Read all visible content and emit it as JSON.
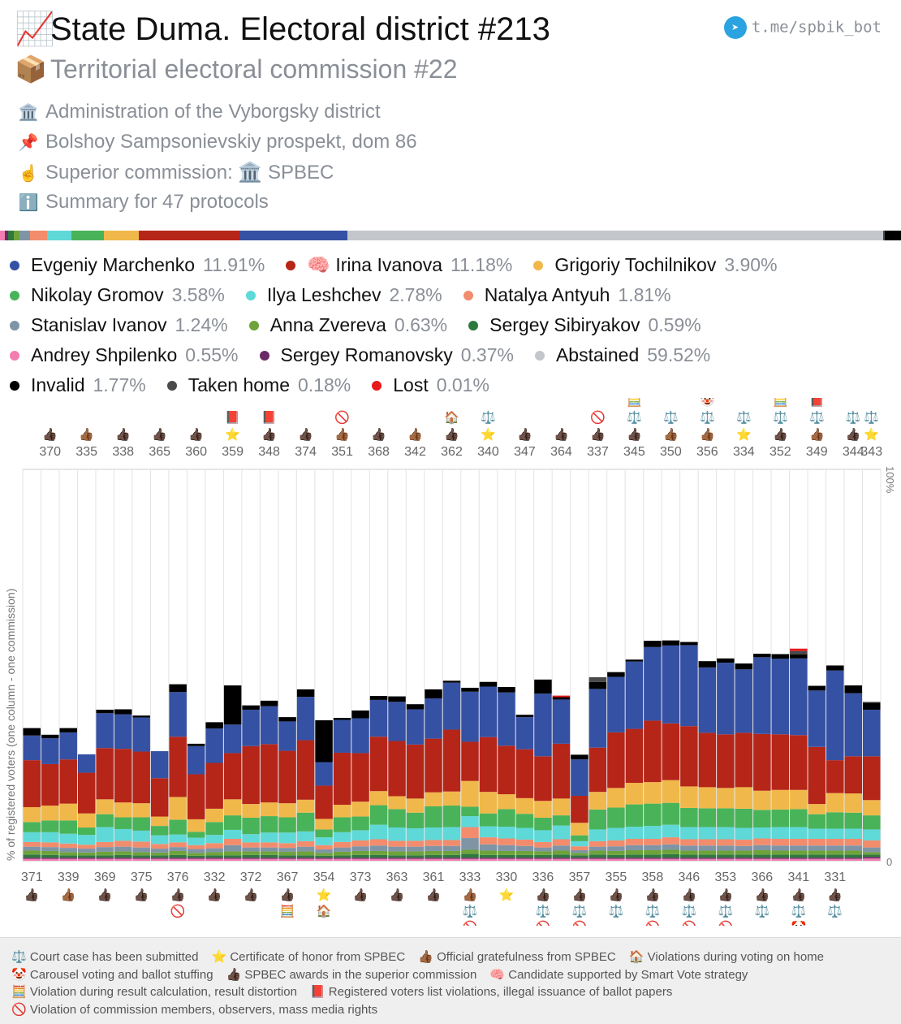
{
  "header": {
    "title_icon": "📈",
    "title": "State Duma. Electoral district #213",
    "subtitle_icon": "📦",
    "subtitle": "Territorial electoral commission #22",
    "telegram": "t.me/spbik_bot",
    "info": [
      {
        "icon": "🏛️",
        "text": "Administration of the Vyborgsky district"
      },
      {
        "icon": "📌",
        "text": "Bolshoy Sampsonievskiy prospekt, dom 86"
      },
      {
        "icon": "☝️",
        "text": "Superior commission: 🏛️ SPBEC"
      },
      {
        "icon": "ℹ️",
        "text": "Summary for 47 protocols"
      }
    ]
  },
  "legend": [
    {
      "name": "Evgeniy Marchenko",
      "pct": "11.91%",
      "color": "#3551a3"
    },
    {
      "name": "🧠 Irina Ivanova",
      "pct": "11.18%",
      "color": "#b52518"
    },
    {
      "name": "Grigoriy Tochilnikov",
      "pct": "3.90%",
      "color": "#f0b84a"
    },
    {
      "name": "Nikolay Gromov",
      "pct": "3.58%",
      "color": "#49b35a"
    },
    {
      "name": "Ilya Leshchev",
      "pct": "2.78%",
      "color": "#5fd8d8"
    },
    {
      "name": "Natalya Antyuh",
      "pct": "1.81%",
      "color": "#f28c6c"
    },
    {
      "name": "Stanislav Ivanov",
      "pct": "1.24%",
      "color": "#7f95a6"
    },
    {
      "name": "Anna Zvereva",
      "pct": "0.63%",
      "color": "#6ea33a"
    },
    {
      "name": "Sergey Sibiryakov",
      "pct": "0.59%",
      "color": "#2e7a3d"
    },
    {
      "name": "Andrey Shpilenko",
      "pct": "0.55%",
      "color": "#f27db0"
    },
    {
      "name": "Sergey Romanovsky",
      "pct": "0.37%",
      "color": "#6a2a66"
    },
    {
      "name": "Abstained",
      "pct": "59.52%",
      "color": "#c3c6ca"
    },
    {
      "name": "Invalid",
      "pct": "1.77%",
      "color": "#000000"
    },
    {
      "name": "Taken home",
      "pct": "0.18%",
      "color": "#4a4a4a"
    },
    {
      "name": "Lost",
      "pct": "0.01%",
      "color": "#e8191c"
    }
  ],
  "legend_rows": [
    [
      0,
      1,
      2
    ],
    [
      3,
      4,
      5
    ],
    [
      6,
      7,
      8
    ],
    [
      9,
      10,
      11
    ],
    [
      12,
      13,
      14
    ]
  ],
  "chart_data": {
    "type": "bar",
    "stacked": true,
    "ylabel": "% of registered voters (one column - one commission)",
    "ylim": [
      0,
      100
    ],
    "y_tick_labels": [
      "0",
      "100%"
    ],
    "series_names": [
      "Andrey Shpilenko",
      "Sergey Romanovsky",
      "Sergey Sibiryakov",
      "Anna Zvereva",
      "Stanislav Ivanov",
      "Natalya Antyuh",
      "Ilya Leshchev",
      "Nikolay Gromov",
      "Grigoriy Tochilnikov",
      "Irina Ivanova",
      "Evgeniy Marchenko",
      "Invalid",
      "Taken home",
      "Lost"
    ],
    "series_colors": [
      "#f27db0",
      "#6a2a66",
      "#2e7a3d",
      "#6ea33a",
      "#7f95a6",
      "#f28c6c",
      "#5fd8d8",
      "#49b35a",
      "#f0b84a",
      "#b52518",
      "#3551a3",
      "#000000",
      "#4a4a4a",
      "#e8191c"
    ],
    "categories": [
      "371",
      "370",
      "339",
      "335",
      "369",
      "338",
      "375",
      "365",
      "376",
      "360",
      "332",
      "359",
      "372",
      "348",
      "367",
      "374",
      "354",
      "351",
      "373",
      "368",
      "363",
      "342",
      "361",
      "362",
      "333",
      "340",
      "330",
      "347",
      "336",
      "364",
      "357",
      "337",
      "355",
      "345",
      "358",
      "350",
      "346",
      "356",
      "353",
      "334",
      "366",
      "352",
      "341",
      "349",
      "331",
      "344",
      "343"
    ],
    "columns": [
      [
        0.5,
        0.3,
        0.8,
        1.0,
        1.0,
        1.2,
        2.5,
        2.6,
        3.8,
        12.0,
        6.3,
        1.9,
        0,
        0
      ],
      [
        0.5,
        0.3,
        0.7,
        1.0,
        1.0,
        1.2,
        2.6,
        3.0,
        3.8,
        10.6,
        6.6,
        0.9,
        0,
        0
      ],
      [
        0.5,
        0.3,
        0.6,
        0.8,
        1.1,
        1.1,
        2.5,
        3.4,
        4.3,
        11.3,
        6.9,
        1.1,
        0,
        0
      ],
      [
        0.5,
        0.3,
        0.6,
        0.7,
        1.0,
        1.0,
        2.5,
        1.9,
        3.6,
        10.4,
        4.7,
        0,
        0,
        0
      ],
      [
        0.5,
        0.3,
        0.6,
        0.9,
        1.2,
        1.3,
        3.8,
        3.3,
        3.8,
        13.1,
        8.9,
        0.9,
        0,
        0
      ],
      [
        0.5,
        0.3,
        0.7,
        0.9,
        1.2,
        1.5,
        3.0,
        3.0,
        3.8,
        13.7,
        8.8,
        1.3,
        0,
        0
      ],
      [
        0.5,
        0.3,
        0.6,
        0.8,
        1.2,
        1.5,
        2.8,
        3.4,
        3.6,
        13.2,
        8.7,
        0.5,
        0,
        0
      ],
      [
        0.5,
        0.3,
        0.6,
        0.7,
        1.0,
        1.2,
        2.2,
        2.4,
        2.4,
        9.8,
        6.9,
        0,
        0,
        0
      ],
      [
        0.5,
        0.3,
        0.7,
        1.0,
        1.0,
        1.2,
        2.0,
        3.8,
        5.8,
        15.4,
        11.4,
        2.0,
        0,
        0
      ],
      [
        0.5,
        0.3,
        0.5,
        0.7,
        1.0,
        1.0,
        1.9,
        1.5,
        3.2,
        11.5,
        7.2,
        0.6,
        0,
        0
      ],
      [
        0.5,
        0.3,
        0.6,
        0.8,
        1.0,
        1.3,
        2.1,
        3.3,
        3.4,
        11.7,
        8.8,
        1.6,
        0,
        0
      ],
      [
        0.5,
        0.3,
        0.6,
        1.0,
        1.6,
        1.6,
        2.3,
        3.7,
        4.1,
        11.8,
        7.3,
        10.0,
        0,
        0
      ],
      [
        0.5,
        0.3,
        0.7,
        0.9,
        1.0,
        1.3,
        2.1,
        4.2,
        3.5,
        14.8,
        9.3,
        1.1,
        0,
        0
      ],
      [
        0.5,
        0.3,
        0.7,
        0.9,
        1.0,
        1.3,
        2.5,
        4.2,
        3.5,
        14.9,
        9.7,
        1.4,
        0,
        0
      ],
      [
        0.5,
        0.3,
        0.6,
        0.9,
        1.0,
        1.2,
        2.7,
        3.9,
        3.6,
        13.4,
        7.5,
        1.1,
        0,
        0
      ],
      [
        0.5,
        0.3,
        0.6,
        1.0,
        1.2,
        1.4,
        2.5,
        4.8,
        3.3,
        15.2,
        11.1,
        1.9,
        0,
        0
      ],
      [
        0.5,
        0.3,
        0.5,
        0.7,
        0.9,
        1.1,
        2.0,
        2.0,
        2.7,
        8.5,
        6.0,
        10.7,
        0,
        0
      ],
      [
        0.5,
        0.3,
        0.6,
        0.9,
        1.1,
        1.4,
        2.5,
        3.8,
        3.2,
        13.3,
        8.4,
        0.5,
        0,
        0
      ],
      [
        0.5,
        0.3,
        0.7,
        1.0,
        1.2,
        1.5,
        2.6,
        3.5,
        3.8,
        12.4,
        8.9,
        2.0,
        0,
        0
      ],
      [
        0.5,
        0.3,
        0.7,
        1.0,
        1.4,
        1.6,
        3.7,
        5.0,
        3.6,
        13.9,
        9.4,
        1.0,
        0,
        0
      ],
      [
        0.5,
        0.3,
        0.6,
        1.0,
        1.2,
        1.5,
        3.4,
        4.7,
        3.3,
        14.1,
        10.0,
        1.4,
        0,
        0
      ],
      [
        0.5,
        0.3,
        0.6,
        1.0,
        1.2,
        1.5,
        3.2,
        4.0,
        3.6,
        13.8,
        9.0,
        1.3,
        0,
        0
      ],
      [
        0.5,
        0.3,
        0.7,
        1.0,
        1.3,
        1.5,
        3.2,
        5.4,
        3.6,
        13.7,
        10.3,
        2.3,
        0,
        0
      ],
      [
        0.5,
        0.3,
        0.7,
        1.0,
        1.3,
        1.5,
        3.3,
        5.5,
        3.6,
        15.8,
        12.0,
        0.5,
        0,
        0
      ],
      [
        0.5,
        0.3,
        1.0,
        1.0,
        3.0,
        2.8,
        2.8,
        2.4,
        6.6,
        10.0,
        12.8,
        1.0,
        0,
        0
      ],
      [
        0.5,
        0.3,
        0.7,
        1.1,
        1.6,
        1.8,
        2.8,
        3.3,
        5.5,
        14.0,
        12.9,
        1.2,
        0,
        0
      ],
      [
        0.5,
        0.3,
        0.7,
        1.0,
        1.5,
        1.7,
        3.0,
        4.5,
        3.8,
        12.4,
        13.6,
        1.4,
        0,
        0
      ],
      [
        0.5,
        0.3,
        0.7,
        1.0,
        1.3,
        1.6,
        3.0,
        3.6,
        4.0,
        12.5,
        8.2,
        0.6,
        0,
        0
      ],
      [
        0.5,
        0.3,
        0.7,
        0.9,
        1.0,
        1.4,
        3.0,
        3.2,
        4.3,
        11.4,
        16.0,
        3.6,
        0,
        0
      ],
      [
        0.5,
        0.3,
        0.8,
        1.0,
        1.3,
        1.6,
        3.5,
        2.6,
        4.3,
        14.0,
        11.3,
        0.6,
        0,
        0.4
      ],
      [
        0.5,
        0.3,
        0.6,
        0.6,
        0.7,
        1.0,
        1.3,
        1.5,
        3.2,
        6.9,
        9.3,
        1.2,
        0,
        0
      ],
      [
        0.5,
        0.3,
        0.8,
        1.0,
        1.0,
        1.4,
        3.0,
        5.1,
        4.5,
        11.3,
        15.0,
        1.8,
        1.2,
        0
      ],
      [
        0.5,
        0.3,
        0.7,
        1.0,
        1.2,
        1.5,
        3.2,
        5.2,
        5.0,
        14.2,
        14.2,
        1.2,
        0,
        0
      ],
      [
        0.5,
        0.3,
        0.8,
        1.1,
        1.3,
        1.6,
        3.1,
        5.7,
        5.5,
        13.8,
        17.2,
        0.5,
        0,
        0
      ],
      [
        0.5,
        0.3,
        0.8,
        1.1,
        1.3,
        1.6,
        3.3,
        5.7,
        5.5,
        15.7,
        18.8,
        1.6,
        0,
        0
      ],
      [
        0.5,
        0.3,
        0.9,
        1.1,
        1.4,
        1.8,
        3.2,
        5.6,
        5.8,
        14.5,
        19.9,
        1.3,
        0,
        0
      ],
      [
        0.5,
        0.3,
        0.8,
        1.0,
        1.3,
        1.6,
        3.1,
        4.9,
        5.5,
        15.4,
        20.7,
        0.8,
        0,
        0
      ],
      [
        0.5,
        0.3,
        0.8,
        1.0,
        1.3,
        1.6,
        3.1,
        4.8,
        5.4,
        13.9,
        16.7,
        1.6,
        0,
        0
      ],
      [
        0.5,
        0.3,
        0.8,
        1.0,
        1.3,
        1.6,
        3.1,
        4.8,
        5.2,
        13.7,
        18.3,
        1.1,
        0,
        0
      ],
      [
        0.5,
        0.3,
        0.8,
        1.0,
        1.2,
        1.6,
        3.0,
        4.9,
        5.5,
        13.9,
        16.2,
        1.5,
        0,
        0
      ],
      [
        0.5,
        0.3,
        0.8,
        1.1,
        1.3,
        1.7,
        2.8,
        4.5,
        4.9,
        14.5,
        19.6,
        0.9,
        0,
        0
      ],
      [
        0.5,
        0.3,
        0.8,
        1.0,
        1.3,
        1.7,
        3.0,
        4.5,
        5.0,
        14.2,
        19.3,
        1.2,
        0,
        0
      ],
      [
        0.5,
        0.3,
        0.8,
        1.0,
        1.3,
        1.7,
        3.0,
        4.6,
        4.9,
        14.0,
        19.6,
        1.0,
        0.9,
        0.6
      ],
      [
        0.5,
        0.3,
        0.8,
        1.0,
        1.3,
        1.7,
        2.6,
        3.7,
        2.6,
        14.6,
        14.4,
        1.2,
        0,
        0
      ],
      [
        0.5,
        0.3,
        0.8,
        1.0,
        1.3,
        1.7,
        2.6,
        4.2,
        4.9,
        8.4,
        22.9,
        1.3,
        0,
        0
      ],
      [
        0.5,
        0.3,
        0.8,
        1.0,
        1.3,
        1.7,
        2.6,
        4.1,
        4.9,
        9.5,
        16.1,
        2.0,
        0,
        0
      ],
      [
        0.6,
        0.4,
        0.6,
        0.6,
        1.2,
        1.8,
        2.8,
        3.6,
        3.9,
        11.2,
        11.9,
        1.8,
        0.2,
        0
      ]
    ],
    "top_labels": [
      "370",
      "335",
      "338",
      "365",
      "360",
      "359",
      "348",
      "374",
      "351",
      "368",
      "342",
      "362",
      "340",
      "347",
      "364",
      "337",
      "345",
      "350",
      "356",
      "334",
      "352",
      "349",
      "344",
      "343"
    ],
    "bottom_labels": [
      "371",
      "339",
      "369",
      "375",
      "376",
      "332",
      "372",
      "367",
      "354",
      "373",
      "363",
      "361",
      "333",
      "330",
      "336",
      "357",
      "355",
      "358",
      "346",
      "353",
      "366",
      "341",
      "331"
    ],
    "top_marks": {
      "370": [
        "👍🏿"
      ],
      "335": [
        "👍🏾"
      ],
      "338": [
        "👍🏿"
      ],
      "365": [
        "👍🏿"
      ],
      "360": [
        "👍🏿"
      ],
      "359": [
        "⭐",
        "📕"
      ],
      "348": [
        "👍🏿",
        "📕"
      ],
      "374": [
        "👍🏿"
      ],
      "351": [
        "👍🏾",
        "🚫"
      ],
      "368": [
        "👍🏿"
      ],
      "342": [
        "👍🏾"
      ],
      "362": [
        "👍🏿",
        "🏠"
      ],
      "340": [
        "⭐",
        "⚖️"
      ],
      "347": [
        "👍🏿"
      ],
      "364": [
        "👍🏿"
      ],
      "337": [
        "👍🏿",
        "🚫"
      ],
      "345": [
        "👍🏿",
        "⚖️",
        "🧮"
      ],
      "350": [
        "👍🏾",
        "⚖️"
      ],
      "356": [
        "👍🏾",
        "⚖️",
        "🤡"
      ],
      "334": [
        "⭐",
        "⚖️"
      ],
      "352": [
        "👍🏿",
        "⚖️",
        "🧮"
      ],
      "349": [
        "👍🏾",
        "⚖️",
        "📕"
      ],
      "344": [
        "👍🏿",
        "⚖️"
      ],
      "343": [
        "⭐",
        "⚖️"
      ]
    },
    "bottom_marks": {
      "371": [
        "👍🏿"
      ],
      "339": [
        "👍🏾"
      ],
      "369": [
        "👍🏿"
      ],
      "375": [
        "👍🏿"
      ],
      "376": [
        "👍🏿",
        "🚫"
      ],
      "332": [
        "👍🏿"
      ],
      "372": [
        "👍🏿"
      ],
      "367": [
        "👍🏿",
        "🧮"
      ],
      "354": [
        "⭐",
        "🏠"
      ],
      "373": [
        "👍🏿"
      ],
      "363": [
        "👍🏿"
      ],
      "361": [
        "👍🏿"
      ],
      "333": [
        "👍🏾",
        "⚖️",
        "🚫"
      ],
      "330": [
        "⭐"
      ],
      "336": [
        "👍🏿",
        "⚖️",
        "🚫"
      ],
      "357": [
        "👍🏿",
        "⚖️",
        "🚫"
      ],
      "355": [
        "👍🏿",
        "⚖️"
      ],
      "358": [
        "👍🏿",
        "⚖️",
        "🚫"
      ],
      "346": [
        "👍🏿",
        "⚖️",
        "🚫"
      ],
      "353": [
        "👍🏿",
        "⚖️",
        "🚫"
      ],
      "366": [
        "👍🏿",
        "⚖️"
      ],
      "341": [
        "👍🏿",
        "⚖️",
        "🤡"
      ],
      "331": [
        "👍🏿",
        "⚖️"
      ]
    },
    "summary": [
      0.55,
      0.37,
      0.59,
      0.63,
      1.24,
      1.81,
      2.78,
      3.58,
      3.9,
      11.18,
      11.91,
      1.77,
      0.18,
      0.01,
      59.52
    ]
  },
  "notes": [
    [
      {
        "icon": "⚖️",
        "text": "Court case has been submitted"
      },
      {
        "icon": "⭐",
        "text": "Certificate of honor from SPBEC"
      },
      {
        "icon": "👍🏾",
        "text": "Official gratefulness from SPBEC"
      },
      {
        "icon": "🏠",
        "text": "Violations during voting on home"
      }
    ],
    [
      {
        "icon": "🤡",
        "text": "Carousel voting and ballot stuffing"
      },
      {
        "icon": "👍🏿",
        "text": "SPBEC awards in the superior commission"
      },
      {
        "icon": "🧠",
        "text": "Candidate supported by Smart Vote strategy"
      }
    ],
    [
      {
        "icon": "🧮",
        "text": "Violation during result calculation, result distortion"
      },
      {
        "icon": "📕",
        "text": "Registered voters list violations, illegal issuance of ballot papers"
      }
    ],
    [
      {
        "icon": "🚫",
        "text": "Violation of commission members, observers, mass media rights"
      }
    ]
  ]
}
